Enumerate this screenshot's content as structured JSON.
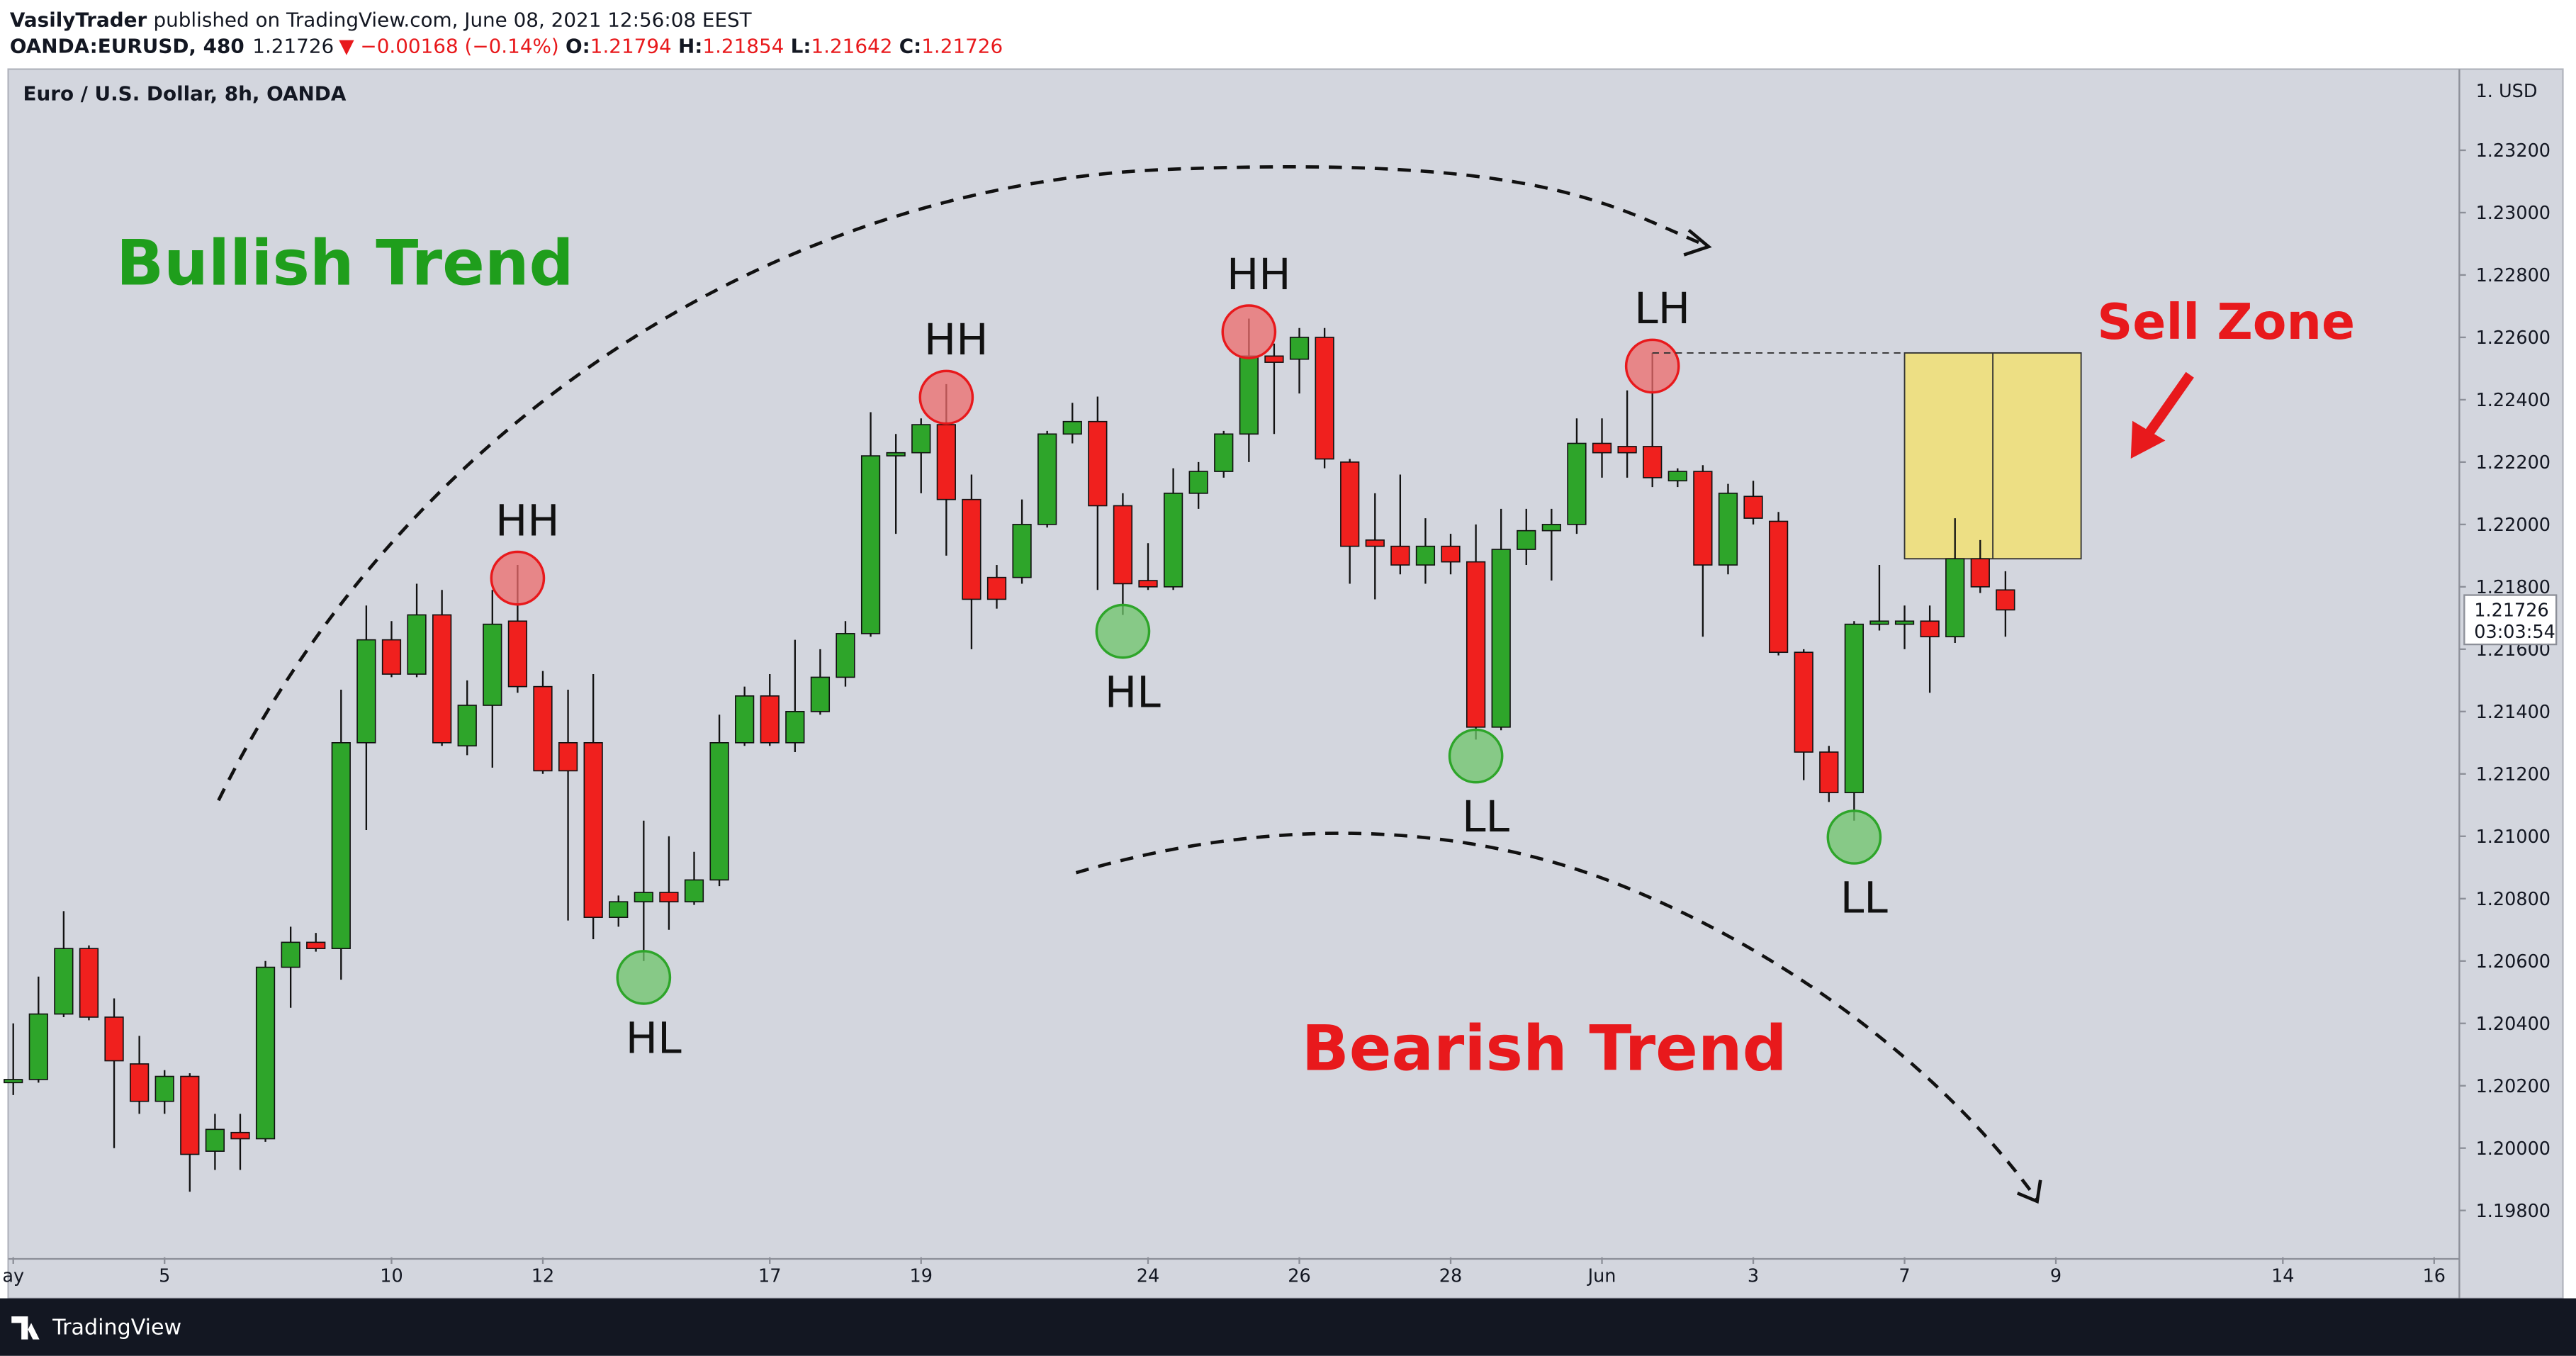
{
  "header": {
    "author": "VasilyTrader",
    "published": "published on TradingView.com, June 08, 2021 12:56:08 EEST",
    "symbol": "OANDA:EURUSD, 480",
    "last": "1.21726",
    "change": "▼ −0.00168 (−0.14%)",
    "ohlc": [
      {
        "label": "O:",
        "value": "1.21794"
      },
      {
        "label": "H:",
        "value": "1.21854"
      },
      {
        "label": "L:",
        "value": "1.21642"
      },
      {
        "label": "C:",
        "value": "1.21726"
      }
    ]
  },
  "footer": {
    "brand": "TradingView"
  },
  "chart_data": {
    "type": "candlestick",
    "title": "Euro / U.S. Dollar, 8h, OANDA",
    "currency_label": "1. USD",
    "x": [
      0,
      1,
      2,
      3,
      4,
      5,
      6,
      7,
      8,
      9,
      10,
      11,
      12,
      13,
      14,
      15,
      16,
      17,
      18,
      19,
      20,
      21,
      22,
      23,
      24,
      25,
      26,
      27,
      28,
      29,
      30,
      31,
      32,
      33,
      34,
      35,
      36,
      37,
      38,
      39,
      40,
      41,
      42,
      43,
      44,
      45,
      46,
      47,
      48,
      49,
      50,
      51,
      52,
      53,
      54,
      55,
      56,
      57,
      58,
      59,
      60,
      61,
      62,
      63,
      64,
      65,
      66,
      67,
      68,
      69,
      70,
      71,
      72,
      73,
      74,
      75,
      76,
      77,
      78,
      79
    ],
    "open": [
      1.2021,
      1.2022,
      1.2043,
      1.2064,
      1.2042,
      1.2027,
      1.2015,
      1.2023,
      1.1999,
      1.2005,
      1.2003,
      1.2058,
      1.2066,
      1.2064,
      1.213,
      1.2163,
      1.2152,
      1.2171,
      1.2129,
      1.2142,
      1.2169,
      1.2148,
      1.213,
      1.213,
      1.2074,
      1.2079,
      1.2082,
      1.2079,
      1.2086,
      1.213,
      1.2145,
      1.213,
      1.214,
      1.2151,
      1.2165,
      1.2222,
      1.2223,
      1.2232,
      1.2208,
      1.2183,
      1.2183,
      1.22,
      1.2229,
      1.2233,
      1.2206,
      1.2182,
      1.218,
      1.221,
      1.2217,
      1.2229,
      1.2254,
      1.2253,
      1.226,
      1.222,
      1.2195,
      1.2193,
      1.2187,
      1.2193,
      1.2188,
      1.2135,
      1.2192,
      1.2198,
      1.22,
      1.2226,
      1.2225,
      1.2225,
      1.2214,
      1.2217,
      1.2187,
      1.2209,
      1.2201,
      1.2159,
      1.2127,
      1.2114,
      1.2168,
      1.2168,
      1.2169,
      1.2164,
      1.2189,
      1.2179
    ],
    "high": [
      1.204,
      1.2055,
      1.2076,
      1.2065,
      1.2048,
      1.2036,
      1.2025,
      1.2024,
      1.2011,
      1.2011,
      1.206,
      1.2071,
      1.2069,
      1.2147,
      1.2174,
      1.2169,
      1.2181,
      1.2179,
      1.215,
      1.2179,
      1.2187,
      1.2153,
      1.2147,
      1.2152,
      1.2081,
      1.2105,
      1.21,
      1.2095,
      1.2139,
      1.2148,
      1.2152,
      1.2163,
      1.216,
      1.2169,
      1.2236,
      1.2229,
      1.2234,
      1.2245,
      1.2216,
      1.2187,
      1.2208,
      1.223,
      1.2239,
      1.2241,
      1.221,
      1.2194,
      1.2218,
      1.222,
      1.223,
      1.2266,
      1.2258,
      1.2263,
      1.2263,
      1.2221,
      1.221,
      1.2216,
      1.2202,
      1.2197,
      1.22,
      1.2205,
      1.2205,
      1.2205,
      1.2234,
      1.2234,
      1.2243,
      1.2255,
      1.2218,
      1.2219,
      1.2213,
      1.2214,
      1.2204,
      1.216,
      1.2129,
      1.2169,
      1.2187,
      1.2174,
      1.2174,
      1.2202,
      1.2195,
      1.2185
    ],
    "low": [
      1.2017,
      1.2021,
      1.2042,
      1.2041,
      1.2,
      1.2011,
      1.2011,
      1.1986,
      1.1993,
      1.1993,
      1.2002,
      1.2045,
      1.2063,
      1.2054,
      1.2102,
      1.2151,
      1.2151,
      1.2129,
      1.2126,
      1.2122,
      1.2146,
      1.212,
      1.2073,
      1.2067,
      1.2071,
      1.206,
      1.207,
      1.2078,
      1.2084,
      1.2129,
      1.2129,
      1.2127,
      1.2139,
      1.2148,
      1.2164,
      1.2197,
      1.221,
      1.219,
      1.216,
      1.2173,
      1.2181,
      1.2199,
      1.2226,
      1.2179,
      1.2171,
      1.2179,
      1.2179,
      1.2205,
      1.2215,
      1.222,
      1.2229,
      1.2242,
      1.2218,
      1.2181,
      1.2176,
      1.2184,
      1.2181,
      1.2184,
      1.2131,
      1.2134,
      1.2187,
      1.2182,
      1.2197,
      1.2215,
      1.2215,
      1.2212,
      1.2212,
      1.2164,
      1.2184,
      1.22,
      1.2158,
      1.2118,
      1.2111,
      1.2105,
      1.2166,
      1.216,
      1.2146,
      1.2162,
      1.2178,
      1.2164
    ],
    "close": [
      1.2022,
      1.2043,
      1.2064,
      1.2042,
      1.2028,
      1.2015,
      1.2023,
      1.1998,
      1.2006,
      1.2003,
      1.2058,
      1.2066,
      1.2064,
      1.213,
      1.2163,
      1.2152,
      1.2171,
      1.213,
      1.2142,
      1.2168,
      1.2148,
      1.2121,
      1.2121,
      1.2074,
      1.2079,
      1.2082,
      1.2079,
      1.2086,
      1.213,
      1.2145,
      1.213,
      1.214,
      1.2151,
      1.2165,
      1.2222,
      1.2223,
      1.2232,
      1.2208,
      1.2176,
      1.2176,
      1.22,
      1.2229,
      1.2233,
      1.2206,
      1.2181,
      1.218,
      1.221,
      1.2217,
      1.2229,
      1.2254,
      1.2252,
      1.226,
      1.2221,
      1.2193,
      1.2193,
      1.2187,
      1.2193,
      1.2188,
      1.2135,
      1.2192,
      1.2198,
      1.22,
      1.2226,
      1.2223,
      1.2223,
      1.2215,
      1.2217,
      1.2187,
      1.221,
      1.2202,
      1.2159,
      1.2127,
      1.2114,
      1.2168,
      1.2169,
      1.2169,
      1.2164,
      1.2189,
      1.218,
      1.21726
    ],
    "up_color": "#2ea52a",
    "down_color": "#f0201e",
    "xlim": [
      -0.2,
      97
    ],
    "xticks": [
      {
        "value": 0,
        "label": "ay"
      },
      {
        "value": 6,
        "label": "5"
      },
      {
        "value": 15,
        "label": "10"
      },
      {
        "value": 21,
        "label": "12"
      },
      {
        "value": 30,
        "label": "17"
      },
      {
        "value": 36,
        "label": "19"
      },
      {
        "value": 45,
        "label": "24"
      },
      {
        "value": 51,
        "label": "26"
      },
      {
        "value": 57,
        "label": "28"
      },
      {
        "value": 63,
        "label": "Jun"
      },
      {
        "value": 69,
        "label": "3"
      },
      {
        "value": 75,
        "label": "7"
      },
      {
        "value": 81,
        "label": "9"
      },
      {
        "value": 90,
        "label": "14"
      },
      {
        "value": 96,
        "label": "16"
      }
    ],
    "ylim": [
      1.1965,
      1.2346
    ],
    "yticks": [
      {
        "value": 1.198,
        "label": "1.19800"
      },
      {
        "value": 1.2,
        "label": "1.20000"
      },
      {
        "value": 1.202,
        "label": "1.20200"
      },
      {
        "value": 1.204,
        "label": "1.20400"
      },
      {
        "value": 1.206,
        "label": "1.20600"
      },
      {
        "value": 1.208,
        "label": "1.20800"
      },
      {
        "value": 1.21,
        "label": "1.21000"
      },
      {
        "value": 1.212,
        "label": "1.21200"
      },
      {
        "value": 1.214,
        "label": "1.21400"
      },
      {
        "value": 1.216,
        "label": "1.21600"
      },
      {
        "value": 1.218,
        "label": "1.21800"
      },
      {
        "value": 1.22,
        "label": "1.22000"
      },
      {
        "value": 1.222,
        "label": "1.22200"
      },
      {
        "value": 1.224,
        "label": "1.22400"
      },
      {
        "value": 1.226,
        "label": "1.22600"
      },
      {
        "value": 1.228,
        "label": "1.22800"
      },
      {
        "value": 1.23,
        "label": "1.23000"
      },
      {
        "value": 1.232,
        "label": "1.23200"
      }
    ],
    "grid": false,
    "last_price": 1.21726,
    "countdown": "03:03:54",
    "trend_labels": [
      {
        "text": "Bullish Trend",
        "color": "#1f9e1c"
      },
      {
        "text": "Bearish Trend",
        "color": "#e8191c"
      }
    ],
    "swing_points": [
      {
        "label": "HH",
        "at": 20
      },
      {
        "label": "HL",
        "at": 25
      },
      {
        "label": "HH",
        "at": 37
      },
      {
        "label": "HL",
        "at": 44
      },
      {
        "label": "HH",
        "at": 49
      },
      {
        "label": "LL",
        "at": 58
      },
      {
        "label": "LH",
        "at": 65
      },
      {
        "label": "LL",
        "at": 73
      }
    ],
    "zone": {
      "label": "Sell Zone",
      "top": 1.2255,
      "bottom": 1.2189,
      "start": 75,
      "end": 82
    }
  }
}
